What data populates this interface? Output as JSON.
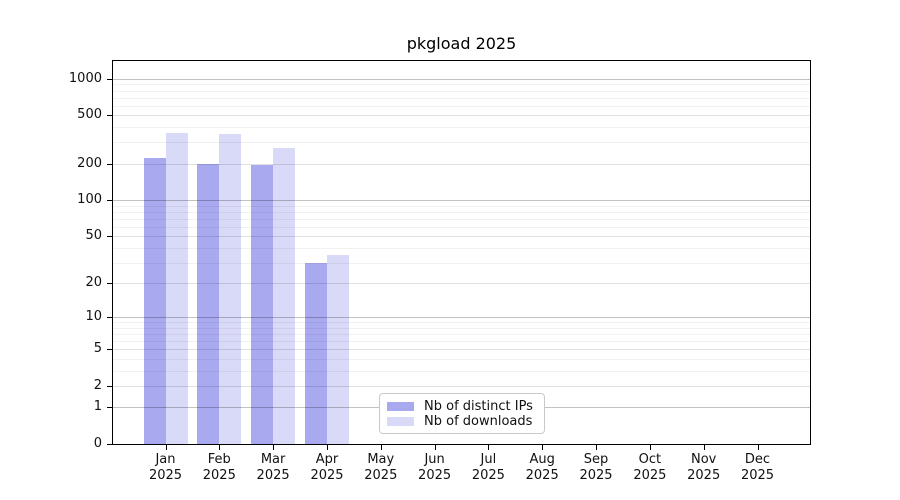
{
  "chart_data": {
    "type": "bar",
    "title": "pkgload 2025",
    "categories": [
      "Jan",
      "Feb",
      "Mar",
      "Apr",
      "May",
      "Jun",
      "Jul",
      "Aug",
      "Sep",
      "Oct",
      "Nov",
      "Dec"
    ],
    "x_sublabels": [
      "2025",
      "2025",
      "2025",
      "2025",
      "2025",
      "2025",
      "2025",
      "2025",
      "2025",
      "2025",
      "2025",
      "2025"
    ],
    "series": [
      {
        "name": "Nb of distinct IPs",
        "color": "#a9a9f0",
        "values": [
          222,
          200,
          194,
          30,
          0,
          0,
          0,
          0,
          0,
          0,
          0,
          0
        ]
      },
      {
        "name": "Nb of downloads",
        "color": "#d9d9f8",
        "values": [
          360,
          352,
          272,
          35,
          0,
          0,
          0,
          0,
          0,
          0,
          0,
          0
        ]
      }
    ],
    "xlabel": "",
    "ylabel": "",
    "yscale": "log1p",
    "yticks": [
      0,
      1,
      2,
      5,
      10,
      20,
      50,
      100,
      200,
      500,
      1000
    ],
    "ylim": [
      0,
      1400
    ],
    "grid": "major-and-minor, horizontal only",
    "legend": {
      "position": "inside lower-center-left",
      "border_color": "#c9c9c9"
    }
  }
}
